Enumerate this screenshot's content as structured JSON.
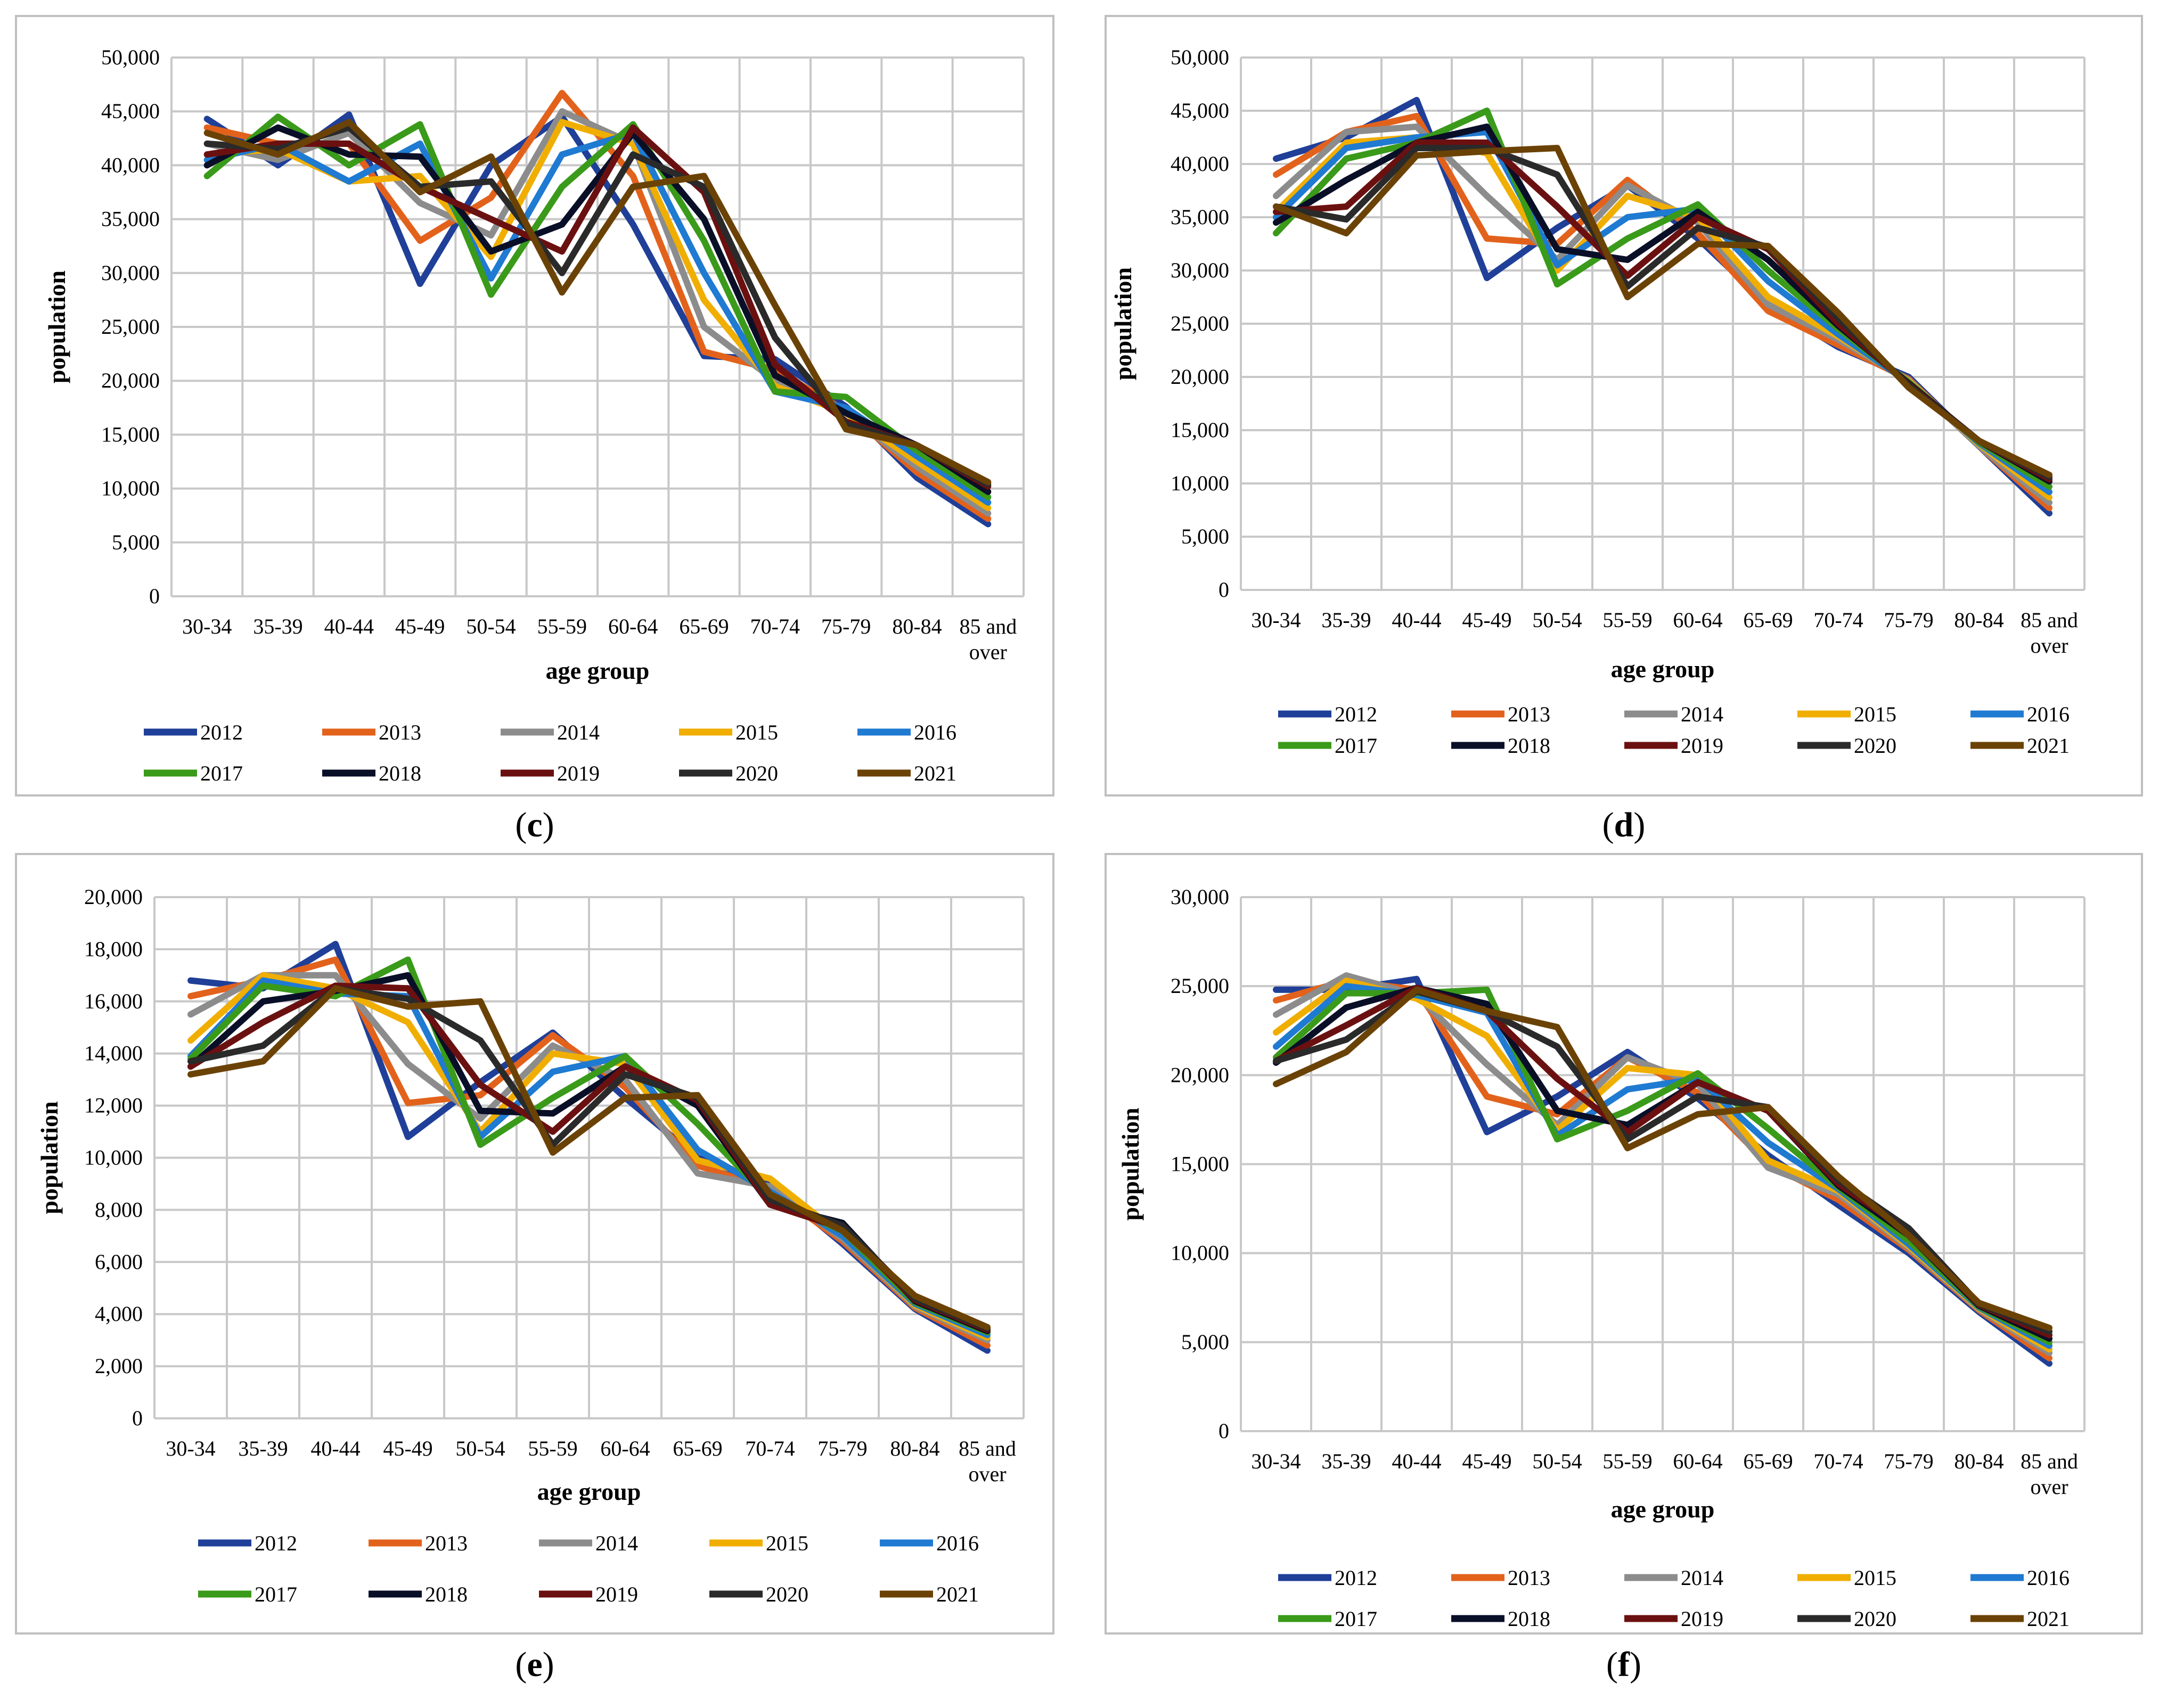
{
  "colors": {
    "2012": "#1f3f98",
    "2013": "#e2621c",
    "2014": "#8c8c8c",
    "2015": "#f0ae00",
    "2016": "#1f7ad2",
    "2017": "#3a9a1a",
    "2018": "#0a0f28",
    "2019": "#6b1010",
    "2020": "#2a2a2a",
    "2021": "#6b4205"
  },
  "chart_data": [
    {
      "type": "line",
      "panel_label": "c",
      "xlabel": "age group",
      "ylabel": "population",
      "ylim": [
        0,
        50000
      ],
      "yticks": [
        0,
        5000,
        10000,
        15000,
        20000,
        25000,
        30000,
        35000,
        40000,
        45000,
        50000
      ],
      "ytick_labels": [
        "0",
        "5,000",
        "10,000",
        "15,000",
        "20,000",
        "25,000",
        "30,000",
        "35,000",
        "40,000",
        "45,000",
        "50,000"
      ],
      "categories": [
        "30-34",
        "35-39",
        "40-44",
        "45-49",
        "50-54",
        "55-59",
        "60-64",
        "65-69",
        "70-74",
        "75-79",
        "80-84",
        "85 and over"
      ],
      "legend_rows": [
        [
          "2012",
          "2013",
          "2014",
          "2015",
          "2016"
        ],
        [
          "2017",
          "2018",
          "2019",
          "2020",
          "2021"
        ]
      ],
      "series": [
        {
          "name": "2012",
          "values": [
            44300,
            40000,
            44700,
            29000,
            40000,
            44500,
            34500,
            22300,
            22000,
            17600,
            11000,
            6700
          ]
        },
        {
          "name": "2013",
          "values": [
            43500,
            42000,
            42000,
            33000,
            37000,
            46700,
            39000,
            22700,
            21000,
            17200,
            11500,
            7200
          ]
        },
        {
          "name": "2014",
          "values": [
            42000,
            40500,
            43000,
            36500,
            33500,
            45000,
            42000,
            25000,
            20000,
            17000,
            12000,
            7700
          ]
        },
        {
          "name": "2015",
          "values": [
            41000,
            41500,
            38500,
            39000,
            31500,
            44000,
            42000,
            27500,
            19500,
            17000,
            12500,
            8200
          ]
        },
        {
          "name": "2016",
          "values": [
            40500,
            42000,
            38500,
            42000,
            29500,
            41000,
            43000,
            30000,
            19000,
            17500,
            13000,
            8700
          ]
        },
        {
          "name": "2017",
          "values": [
            39000,
            44500,
            40000,
            43800,
            28000,
            38000,
            43800,
            33000,
            19000,
            18500,
            13500,
            9200
          ]
        },
        {
          "name": "2018",
          "values": [
            40000,
            43500,
            41000,
            40800,
            32000,
            34500,
            43000,
            35000,
            20500,
            17000,
            14000,
            9700
          ]
        },
        {
          "name": "2019",
          "values": [
            41000,
            42000,
            42000,
            38000,
            35000,
            32000,
            43500,
            37500,
            21500,
            16200,
            14000,
            10200
          ]
        },
        {
          "name": "2020",
          "values": [
            42000,
            41500,
            43500,
            38000,
            38500,
            30000,
            41000,
            38000,
            24000,
            16000,
            14000,
            10400
          ]
        },
        {
          "name": "2021",
          "values": [
            43000,
            41000,
            44000,
            37500,
            40800,
            28200,
            38000,
            39000,
            27000,
            15500,
            14000,
            10600
          ]
        }
      ]
    },
    {
      "type": "line",
      "panel_label": "d",
      "xlabel": "age group",
      "ylabel": "population",
      "ylim": [
        0,
        50000
      ],
      "yticks": [
        0,
        5000,
        10000,
        15000,
        20000,
        25000,
        30000,
        35000,
        40000,
        45000,
        50000
      ],
      "ytick_labels": [
        "0",
        "5,000",
        "10,000",
        "15,000",
        "20,000",
        "25,000",
        "30,000",
        "35,000",
        "40,000",
        "45,000",
        "50,000"
      ],
      "categories": [
        "30-34",
        "35-39",
        "40-44",
        "45-49",
        "50-54",
        "55-59",
        "60-64",
        "65-69",
        "70-74",
        "75-79",
        "80-84",
        "85 and over"
      ],
      "legend_rows": [
        [
          "2012",
          "2013",
          "2014",
          "2015",
          "2016"
        ],
        [
          "2017",
          "2018",
          "2019",
          "2020",
          "2021"
        ]
      ],
      "series": [
        {
          "name": "2012",
          "values": [
            40500,
            42500,
            46000,
            29300,
            34000,
            38000,
            33000,
            26800,
            22800,
            20000,
            13500,
            7200
          ]
        },
        {
          "name": "2013",
          "values": [
            39000,
            43000,
            44500,
            33000,
            32500,
            38500,
            33500,
            26200,
            23000,
            19800,
            13500,
            7700
          ]
        },
        {
          "name": "2014",
          "values": [
            37000,
            43000,
            43500,
            37000,
            31000,
            38000,
            34500,
            26800,
            23500,
            19700,
            13500,
            8200
          ]
        },
        {
          "name": "2015",
          "values": [
            35500,
            42000,
            42500,
            41000,
            30000,
            37000,
            35000,
            27500,
            23800,
            19600,
            13700,
            8700
          ]
        },
        {
          "name": "2016",
          "values": [
            35000,
            41500,
            42500,
            43000,
            30500,
            35000,
            35800,
            29000,
            24000,
            19500,
            13800,
            9200
          ]
        },
        {
          "name": "2017",
          "values": [
            33500,
            40500,
            42000,
            45000,
            28700,
            33000,
            36200,
            30000,
            24500,
            19500,
            13900,
            9700
          ]
        },
        {
          "name": "2018",
          "values": [
            34500,
            38500,
            42000,
            43500,
            32000,
            31000,
            35500,
            31000,
            24800,
            19400,
            14000,
            10200
          ]
        },
        {
          "name": "2019",
          "values": [
            35500,
            36000,
            42000,
            42000,
            36000,
            29500,
            35000,
            32000,
            25000,
            19300,
            14000,
            10400
          ]
        },
        {
          "name": "2020",
          "values": [
            36000,
            34800,
            41500,
            41500,
            39000,
            28500,
            34000,
            32200,
            25500,
            19200,
            14000,
            10600
          ]
        },
        {
          "name": "2021",
          "values": [
            36000,
            33500,
            40800,
            41200,
            41500,
            27500,
            32500,
            32300,
            26000,
            19000,
            14000,
            10800
          ]
        }
      ]
    },
    {
      "type": "line",
      "panel_label": "e",
      "xlabel": "age group",
      "ylabel": "population",
      "ylim": [
        0,
        20000
      ],
      "yticks": [
        0,
        2000,
        4000,
        6000,
        8000,
        10000,
        12000,
        14000,
        16000,
        18000,
        20000
      ],
      "ytick_labels": [
        "0",
        "2,000",
        "4,000",
        "6,000",
        "8,000",
        "10,000",
        "12,000",
        "14,000",
        "16,000",
        "18,000",
        "20,000"
      ],
      "categories": [
        "30-34",
        "35-39",
        "40-44",
        "45-49",
        "50-54",
        "55-59",
        "60-64",
        "65-69",
        "70-74",
        "75-79",
        "80-84",
        "85 and over"
      ],
      "legend_rows": [
        [
          "2012",
          "2013",
          "2014",
          "2015",
          "2016"
        ],
        [
          "2017",
          "2018",
          "2019",
          "2020",
          "2021"
        ]
      ],
      "series": [
        {
          "name": "2012",
          "values": [
            16800,
            16500,
            18200,
            10800,
            12900,
            14800,
            12300,
            10000,
            9000,
            6700,
            4200,
            2600
          ]
        },
        {
          "name": "2013",
          "values": [
            16200,
            16800,
            17600,
            12100,
            12400,
            14700,
            12700,
            9700,
            8800,
            6800,
            4250,
            2800
          ]
        },
        {
          "name": "2014",
          "values": [
            15500,
            17000,
            17000,
            13600,
            11500,
            14300,
            13000,
            9400,
            8900,
            6900,
            4300,
            3000
          ]
        },
        {
          "name": "2015",
          "values": [
            14500,
            17000,
            16500,
            15200,
            11000,
            14000,
            13600,
            9900,
            9200,
            7000,
            4350,
            3100
          ]
        },
        {
          "name": "2016",
          "values": [
            13900,
            16800,
            16300,
            16200,
            10800,
            13300,
            13900,
            10300,
            8700,
            7000,
            4400,
            3200
          ]
        },
        {
          "name": "2017",
          "values": [
            13800,
            16600,
            16200,
            17600,
            10500,
            12300,
            13900,
            11300,
            8400,
            7200,
            4450,
            3300
          ]
        },
        {
          "name": "2018",
          "values": [
            13500,
            16000,
            16400,
            17000,
            11800,
            11700,
            13500,
            12000,
            8200,
            7500,
            4500,
            3350
          ]
        },
        {
          "name": "2019",
          "values": [
            13500,
            15200,
            16600,
            16500,
            12800,
            11000,
            13500,
            12200,
            8200,
            7300,
            4550,
            3400
          ]
        },
        {
          "name": "2020",
          "values": [
            13700,
            14300,
            16500,
            16100,
            14500,
            10500,
            13200,
            12300,
            8400,
            7400,
            4600,
            3450
          ]
        },
        {
          "name": "2021",
          "values": [
            13200,
            13700,
            16500,
            15800,
            16000,
            10200,
            12300,
            12400,
            8600,
            7200,
            4700,
            3500
          ]
        }
      ]
    },
    {
      "type": "line",
      "panel_label": "f",
      "xlabel": "age group",
      "ylabel": "population",
      "ylim": [
        0,
        30000
      ],
      "yticks": [
        0,
        5000,
        10000,
        15000,
        20000,
        25000,
        30000
      ],
      "ytick_labels": [
        "0",
        "5,000",
        "10,000",
        "15,000",
        "20,000",
        "25,000",
        "30,000"
      ],
      "categories": [
        "30-34",
        "35-39",
        "40-44",
        "45-49",
        "50-54",
        "55-59",
        "60-64",
        "65-69",
        "70-74",
        "75-79",
        "80-84",
        "85 and over"
      ],
      "legend_rows": [
        [
          "2012",
          "2013",
          "2014",
          "2015",
          "2016"
        ],
        [
          "2017",
          "2018",
          "2019",
          "2020",
          "2021"
        ]
      ],
      "series": [
        {
          "name": "2012",
          "values": [
            24800,
            24800,
            25400,
            16800,
            18800,
            21300,
            18700,
            15500,
            12700,
            10000,
            6700,
            3800
          ]
        },
        {
          "name": "2013",
          "values": [
            24200,
            25300,
            24800,
            18800,
            17800,
            21000,
            19000,
            15000,
            13000,
            10200,
            6800,
            4100
          ]
        },
        {
          "name": "2014",
          "values": [
            23400,
            25600,
            24500,
            20600,
            17200,
            21000,
            19500,
            14800,
            13300,
            10300,
            6850,
            4400
          ]
        },
        {
          "name": "2015",
          "values": [
            22400,
            25300,
            24300,
            22200,
            16900,
            20400,
            20000,
            15200,
            13500,
            10400,
            6900,
            4600
          ]
        },
        {
          "name": "2016",
          "values": [
            21600,
            25000,
            24500,
            23500,
            16600,
            19200,
            19800,
            16200,
            13600,
            10500,
            6950,
            4800
          ]
        },
        {
          "name": "2017",
          "values": [
            21000,
            24600,
            24600,
            24800,
            16400,
            18000,
            20100,
            17000,
            13700,
            10700,
            7000,
            5000
          ]
        },
        {
          "name": "2018",
          "values": [
            20700,
            23800,
            24900,
            24000,
            18000,
            17200,
            19600,
            18000,
            13800,
            11000,
            7050,
            5200
          ]
        },
        {
          "name": "2019",
          "values": [
            20800,
            22800,
            24900,
            23600,
            19800,
            16800,
            19600,
            18000,
            13900,
            11200,
            7100,
            5400
          ]
        },
        {
          "name": "2020",
          "values": [
            20800,
            22000,
            24700,
            23600,
            21600,
            16400,
            18800,
            18200,
            14100,
            11400,
            7150,
            5600
          ]
        },
        {
          "name": "2021",
          "values": [
            19500,
            21300,
            24800,
            23600,
            22700,
            15900,
            17800,
            18200,
            14300,
            11000,
            7200,
            5800
          ]
        }
      ]
    }
  ]
}
